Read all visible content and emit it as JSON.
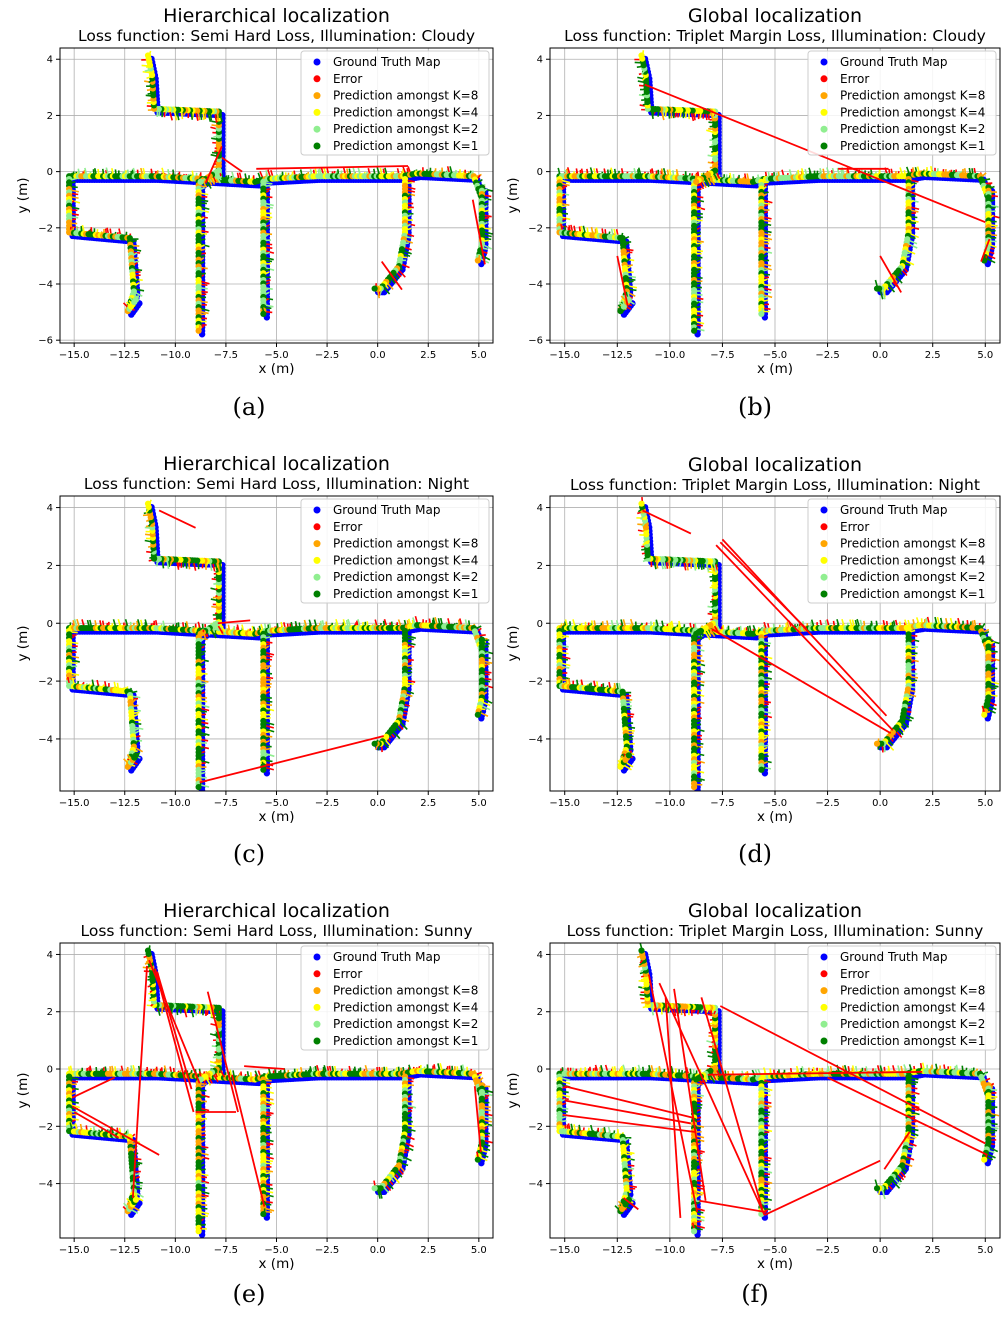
{
  "legend_entries": [
    {
      "label": "Ground Truth Map",
      "color": "#0000ff"
    },
    {
      "label": "Error",
      "color": "#ff0000"
    },
    {
      "label": "Prediction amongst K=8",
      "color": "#ffa500"
    },
    {
      "label": "Prediction amongst K=4",
      "color": "#ffff00"
    },
    {
      "label": "Prediction amongst K=2",
      "color": "#90ee90"
    },
    {
      "label": "Prediction amongst K=1",
      "color": "#008000"
    }
  ],
  "ground_truth_map": {
    "name": "Ground Truth Map",
    "color": "#0000ff",
    "paths": [
      [
        [
          -15.2,
          -0.2
        ],
        [
          -11,
          -0.2
        ],
        [
          -8.5,
          -0.3
        ],
        [
          -6,
          -0.4
        ],
        [
          -5.5,
          -0.3
        ],
        [
          -3,
          -0.2
        ],
        [
          0,
          -0.2
        ],
        [
          1.2,
          -0.2
        ],
        [
          2,
          -0.1
        ],
        [
          4.8,
          -0.2
        ],
        [
          5.2,
          -1
        ]
      ],
      [
        [
          -15.2,
          -0.3
        ],
        [
          -15.2,
          -2.2
        ],
        [
          -12.2,
          -2.4
        ],
        [
          -12,
          -4.3
        ],
        [
          -12.3,
          -5
        ],
        [
          -11.9,
          -4.6
        ]
      ],
      [
        [
          -8.8,
          -0.4
        ],
        [
          -8.8,
          -5.7
        ]
      ],
      [
        [
          -5.6,
          -0.4
        ],
        [
          -5.6,
          -5.1
        ]
      ],
      [
        [
          -7.8,
          -0.2
        ],
        [
          -7.8,
          2.1
        ],
        [
          -11,
          2.2
        ],
        [
          -11.1,
          3.4
        ],
        [
          -11.3,
          4.1
        ]
      ],
      [
        [
          -7.8,
          0
        ],
        [
          -8.7,
          -0.4
        ]
      ],
      [
        [
          1.4,
          -0.3
        ],
        [
          1.4,
          -2.2
        ],
        [
          1.1,
          -3.4
        ],
        [
          0.2,
          -4.2
        ],
        [
          -0.1,
          -4.2
        ]
      ],
      [
        [
          5.2,
          -0.6
        ],
        [
          5.2,
          -2.6
        ],
        [
          5,
          -3.2
        ]
      ]
    ]
  },
  "panels": [
    {
      "caption": "(a)",
      "title": "Hierarchical localization",
      "subtitle": "Loss function: Semi Hard Loss, Illumination: Cloudy",
      "chart_data": {
        "type": "scatter",
        "xlabel": "x (m)",
        "ylabel": "y (m)",
        "xlim": [
          -15.7,
          5.7
        ],
        "ylim": [
          -6.1,
          4.4
        ],
        "xticks": [
          -15,
          -12.5,
          -10,
          -7.5,
          -5,
          -2.5,
          0,
          2.5,
          5
        ],
        "xtick_labels": [
          "−15.0",
          "−12.5",
          "−10.0",
          "−7.5",
          "−5.0",
          "−2.5",
          "0.0",
          "2.5",
          "5.0"
        ],
        "yticks": [
          -6,
          -4,
          -2,
          0,
          2,
          4
        ],
        "ytick_labels": [
          "−6",
          "−4",
          "−2",
          "0",
          "2",
          "4"
        ],
        "grid": true,
        "legend_position": "top-right",
        "error_lines": [
          {
            "from": [
              -8.5,
              -0.4
            ],
            "to": [
              -7.7,
              0.9
            ]
          },
          {
            "from": [
              -7.7,
              0.5
            ],
            "to": [
              -6.7,
              0.0
            ]
          },
          {
            "from": [
              -6.0,
              0.1
            ],
            "to": [
              1.5,
              0.2
            ]
          },
          {
            "from": [
              0.2,
              -3.2
            ],
            "to": [
              1.2,
              -4.2
            ]
          },
          {
            "from": [
              4.7,
              -1.0
            ],
            "to": [
              5.3,
              -3.3
            ]
          }
        ]
      }
    },
    {
      "caption": "(b)",
      "title": "Global localization",
      "subtitle": "Loss function: Triplet Margin Loss, Illumination: Cloudy",
      "chart_data": {
        "type": "scatter",
        "xlabel": "x (m)",
        "ylabel": "y (m)",
        "xlim": [
          -15.7,
          5.7
        ],
        "ylim": [
          -6.1,
          4.4
        ],
        "xticks": [
          -15,
          -12.5,
          -10,
          -7.5,
          -5,
          -2.5,
          0,
          2.5,
          5
        ],
        "xtick_labels": [
          "−15.0",
          "−12.5",
          "−10.0",
          "−7.5",
          "−5.0",
          "−2.5",
          "0.0",
          "2.5",
          "5.0"
        ],
        "yticks": [
          -6,
          -4,
          -2,
          0,
          2,
          4
        ],
        "ytick_labels": [
          "−6",
          "−4",
          "−2",
          "0",
          "2",
          "4"
        ],
        "grid": true,
        "legend_position": "top-right",
        "error_lines": [
          {
            "from": [
              -11.2,
              3.1
            ],
            "to": [
              5.0,
              -1.8
            ]
          },
          {
            "from": [
              -2.0,
              0.1
            ],
            "to": [
              0.4,
              0.1
            ]
          },
          {
            "from": [
              0.0,
              -3.0
            ],
            "to": [
              1.0,
              -4.3
            ]
          },
          {
            "from": [
              -12.5,
              -3.0
            ],
            "to": [
              -12.0,
              -4.8
            ]
          },
          {
            "from": [
              4.8,
              -3.2
            ],
            "to": [
              5.2,
              -2.4
            ]
          }
        ]
      }
    },
    {
      "caption": "(c)",
      "title": "Hierarchical localization",
      "subtitle": "Loss function: Semi Hard Loss, Illumination: Night",
      "chart_data": {
        "type": "scatter",
        "xlabel": "x (m)",
        "ylabel": "y (m)",
        "xlim": [
          -15.7,
          5.7
        ],
        "ylim": [
          -5.8,
          4.4
        ],
        "xticks": [
          -15,
          -12.5,
          -10,
          -7.5,
          -5,
          -2.5,
          0,
          2.5,
          5
        ],
        "xtick_labels": [
          "−15.0",
          "−12.5",
          "−10.0",
          "−7.5",
          "−5.0",
          "−2.5",
          "0.0",
          "2.5",
          "5.0"
        ],
        "yticks": [
          -4,
          -2,
          0,
          2,
          4
        ],
        "ytick_labels": [
          "−4",
          "−2",
          "0",
          "2",
          "4"
        ],
        "grid": true,
        "legend_position": "top-right",
        "error_lines": [
          {
            "from": [
              -8.8,
              -5.5
            ],
            "to": [
              0.3,
              -3.9
            ]
          },
          {
            "from": [
              -10.8,
              3.9
            ],
            "to": [
              -9.0,
              3.3
            ]
          },
          {
            "from": [
              -7.9,
              0.0
            ],
            "to": [
              -6.3,
              0.1
            ]
          }
        ]
      }
    },
    {
      "caption": "(d)",
      "title": "Global localization",
      "subtitle": "Loss function: Triplet Margin Loss, Illumination: Night",
      "chart_data": {
        "type": "scatter",
        "xlabel": "x (m)",
        "ylabel": "y (m)",
        "xlim": [
          -15.7,
          5.7
        ],
        "ylim": [
          -5.8,
          4.4
        ],
        "xticks": [
          -15,
          -12.5,
          -10,
          -7.5,
          -5,
          -2.5,
          0,
          2.5,
          5
        ],
        "xtick_labels": [
          "−15.0",
          "−12.5",
          "−10.0",
          "−7.5",
          "−5.0",
          "−2.5",
          "0.0",
          "2.5",
          "5.0"
        ],
        "yticks": [
          -4,
          -2,
          0,
          2,
          4
        ],
        "ytick_labels": [
          "−4",
          "−2",
          "0",
          "2",
          "4"
        ],
        "grid": true,
        "legend_position": "top-right",
        "error_lines": [
          {
            "from": [
              -7.5,
              2.9
            ],
            "to": [
              0.3,
              -3.2
            ]
          },
          {
            "from": [
              -7.8,
              2.7
            ],
            "to": [
              0.6,
              -3.7
            ]
          },
          {
            "from": [
              -7.6,
              2.8
            ],
            "to": [
              -3.5,
              -0.2
            ]
          },
          {
            "from": [
              -8.0,
              -0.2
            ],
            "to": [
              0.5,
              -3.8
            ]
          },
          {
            "from": [
              -11.3,
              3.9
            ],
            "to": [
              -9.0,
              3.1
            ]
          }
        ]
      }
    },
    {
      "caption": "(e)",
      "title": "Hierarchical localization",
      "subtitle": "Loss function: Semi Hard Loss, Illumination: Sunny",
      "chart_data": {
        "type": "scatter",
        "xlabel": "x (m)",
        "ylabel": "y (m)",
        "xlim": [
          -15.7,
          5.7
        ],
        "ylim": [
          -5.9,
          4.4
        ],
        "xticks": [
          -15,
          -12.5,
          -10,
          -7.5,
          -5,
          -2.5,
          0,
          2.5,
          5
        ],
        "xtick_labels": [
          "−15.0",
          "−12.5",
          "−10.0",
          "−7.5",
          "−5.0",
          "−2.5",
          "0.0",
          "2.5",
          "5.0"
        ],
        "yticks": [
          -4,
          -2,
          0,
          2,
          4
        ],
        "ytick_labels": [
          "−4",
          "−2",
          "0",
          "2",
          "4"
        ],
        "grid": true,
        "legend_position": "top-right",
        "error_lines": [
          {
            "from": [
              -11.3,
              3.8
            ],
            "to": [
              -8.8,
              -0.5
            ]
          },
          {
            "from": [
              -11.0,
              3.5
            ],
            "to": [
              -9.1,
              -1.5
            ]
          },
          {
            "from": [
              -10.9,
              3.4
            ],
            "to": [
              -9.2,
              -0.7
            ]
          },
          {
            "from": [
              -11.4,
              3.6
            ],
            "to": [
              -12.1,
              -4.5
            ]
          },
          {
            "from": [
              -8.4,
              2.7
            ],
            "to": [
              -6.9,
              -1.5
            ]
          },
          {
            "from": [
              -15.1,
              -1.3
            ],
            "to": [
              -10.8,
              -3.0
            ]
          },
          {
            "from": [
              -15.0,
              -1.5
            ],
            "to": [
              -12.8,
              -2.4
            ]
          },
          {
            "from": [
              -15.1,
              -1.0
            ],
            "to": [
              -13.0,
              -0.3
            ]
          },
          {
            "from": [
              -9.0,
              -1.5
            ],
            "to": [
              -7.0,
              -1.5
            ]
          },
          {
            "from": [
              -7.2,
              -0.2
            ],
            "to": [
              -5.6,
              -4.8
            ]
          },
          {
            "from": [
              -6.6,
              0.1
            ],
            "to": [
              -4.6,
              0.0
            ]
          },
          {
            "from": [
              4.8,
              -0.6
            ],
            "to": [
              5.1,
              -2.9
            ]
          }
        ]
      }
    },
    {
      "caption": "(f)",
      "title": "Global localization",
      "subtitle": "Loss function: Triplet Margin Loss, Illumination: Sunny",
      "chart_data": {
        "type": "scatter",
        "xlabel": "x (m)",
        "ylabel": "y (m)",
        "xlim": [
          -15.7,
          5.7
        ],
        "ylim": [
          -5.9,
          4.4
        ],
        "xticks": [
          -15,
          -12.5,
          -10,
          -7.5,
          -5,
          -2.5,
          0,
          2.5,
          5
        ],
        "xtick_labels": [
          "−15.0",
          "−12.5",
          "−10.0",
          "−7.5",
          "−5.0",
          "−2.5",
          "0.0",
          "2.5",
          "5.0"
        ],
        "yticks": [
          -4,
          -2,
          0,
          2,
          4
        ],
        "ytick_labels": [
          "−4",
          "−2",
          "0",
          "2",
          "4"
        ],
        "grid": true,
        "legend_position": "top-right",
        "error_lines": [
          {
            "from": [
              -11.0,
              3.3
            ],
            "to": [
              -8.7,
              -5.0
            ]
          },
          {
            "from": [
              -10.5,
              3.0
            ],
            "to": [
              -5.5,
              -5.1
            ]
          },
          {
            "from": [
              -9.8,
              2.8
            ],
            "to": [
              -8.3,
              -4.6
            ]
          },
          {
            "from": [
              -10.2,
              2.5
            ],
            "to": [
              -9.5,
              -5.2
            ]
          },
          {
            "from": [
              -8.5,
              2.5
            ],
            "to": [
              -5.6,
              -4.9
            ]
          },
          {
            "from": [
              -7.6,
              2.2
            ],
            "to": [
              5.0,
              -2.6
            ]
          },
          {
            "from": [
              -15.0,
              -1.1
            ],
            "to": [
              -9.0,
              -1.9
            ]
          },
          {
            "from": [
              -15.1,
              -1.6
            ],
            "to": [
              -8.8,
              -2.2
            ]
          },
          {
            "from": [
              -15.0,
              -0.6
            ],
            "to": [
              -8.9,
              -1.7
            ]
          },
          {
            "from": [
              -8.6,
              -4.6
            ],
            "to": [
              -5.4,
              -5.0
            ]
          },
          {
            "from": [
              -5.5,
              -5.1
            ],
            "to": [
              0.0,
              -3.2
            ]
          },
          {
            "from": [
              -8.2,
              -0.2
            ],
            "to": [
              2.0,
              -0.1
            ]
          },
          {
            "from": [
              -2.5,
              -0.3
            ],
            "to": [
              5.1,
              -3.0
            ]
          },
          {
            "from": [
              -12.2,
              -4.5
            ],
            "to": [
              -11.5,
              -4.9
            ]
          },
          {
            "from": [
              0.2,
              -3.5
            ],
            "to": [
              1.4,
              -2.2
            ]
          }
        ]
      }
    }
  ]
}
